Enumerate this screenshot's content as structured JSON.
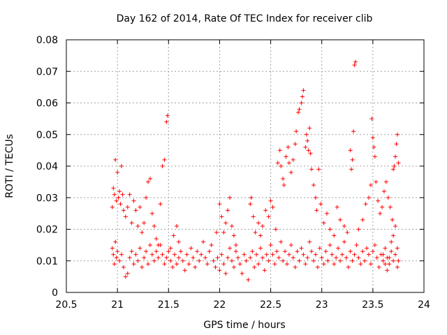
{
  "chart_data": {
    "type": "scatter",
    "title": "Day 162 of 2014, Rate Of TEC Index for receiver clib",
    "xlabel": "GPS time / hours",
    "ylabel": "ROTI / TECUs",
    "xlim": [
      20.5,
      24
    ],
    "ylim": [
      0,
      0.08
    ],
    "x_ticks": [
      20.5,
      21,
      21.5,
      22,
      22.5,
      23,
      23.5,
      24
    ],
    "x_tick_labels": [
      "20.5",
      "21",
      "21.5",
      "22",
      "22.5",
      "23",
      "23.5",
      "24"
    ],
    "y_ticks": [
      0,
      0.01,
      0.02,
      0.03,
      0.04,
      0.05,
      0.06,
      0.07,
      0.08
    ],
    "y_tick_labels": [
      "0",
      "0.01",
      "0.02",
      "0.03",
      "0.04",
      "0.05",
      "0.06",
      "0.07",
      "0.08"
    ],
    "grid": true,
    "marker": "+",
    "marker_color": "#ff0000",
    "series": [
      {
        "name": "ROTI",
        "points": [
          [
            20.95,
            0.027
          ],
          [
            20.96,
            0.033
          ],
          [
            20.97,
            0.031
          ],
          [
            20.98,
            0.042
          ],
          [
            20.99,
            0.029
          ],
          [
            21.0,
            0.038
          ],
          [
            21.01,
            0.03
          ],
          [
            21.02,
            0.032
          ],
          [
            21.03,
            0.028
          ],
          [
            21.04,
            0.04
          ],
          [
            21.05,
            0.031
          ],
          [
            21.06,
            0.026
          ],
          [
            21.08,
            0.024
          ],
          [
            21.1,
            0.027
          ],
          [
            21.12,
            0.031
          ],
          [
            21.14,
            0.022
          ],
          [
            21.16,
            0.029
          ],
          [
            21.18,
            0.026
          ],
          [
            21.2,
            0.021
          ],
          [
            21.22,
            0.027
          ],
          [
            21.24,
            0.019
          ],
          [
            21.26,
            0.022
          ],
          [
            21.28,
            0.03
          ],
          [
            21.3,
            0.035
          ],
          [
            21.32,
            0.036
          ],
          [
            21.34,
            0.025
          ],
          [
            21.36,
            0.021
          ],
          [
            21.38,
            0.017
          ],
          [
            21.4,
            0.015
          ],
          [
            21.42,
            0.028
          ],
          [
            21.44,
            0.04
          ],
          [
            21.46,
            0.042
          ],
          [
            21.48,
            0.054
          ],
          [
            21.49,
            0.056
          ],
          [
            21.52,
            0.014
          ],
          [
            21.55,
            0.018
          ],
          [
            21.58,
            0.021
          ],
          [
            21.6,
            0.016
          ],
          [
            20.95,
            0.014
          ],
          [
            20.96,
            0.012
          ],
          [
            20.97,
            0.009
          ],
          [
            20.98,
            0.016
          ],
          [
            20.99,
            0.011
          ],
          [
            21.0,
            0.013
          ],
          [
            21.02,
            0.01
          ],
          [
            21.04,
            0.012
          ],
          [
            21.06,
            0.008
          ],
          [
            21.08,
            0.005
          ],
          [
            21.1,
            0.006
          ],
          [
            21.12,
            0.011
          ],
          [
            21.14,
            0.013
          ],
          [
            21.16,
            0.009
          ],
          [
            21.18,
            0.012
          ],
          [
            21.2,
            0.01
          ],
          [
            21.22,
            0.014
          ],
          [
            21.24,
            0.008
          ],
          [
            21.26,
            0.011
          ],
          [
            21.28,
            0.013
          ],
          [
            21.3,
            0.009
          ],
          [
            21.32,
            0.015
          ],
          [
            21.34,
            0.012
          ],
          [
            21.36,
            0.01
          ],
          [
            21.38,
            0.013
          ],
          [
            21.4,
            0.011
          ],
          [
            21.42,
            0.015
          ],
          [
            21.44,
            0.012
          ],
          [
            21.46,
            0.009
          ],
          [
            21.48,
            0.011
          ],
          [
            21.5,
            0.013
          ],
          [
            21.52,
            0.01
          ],
          [
            21.54,
            0.008
          ],
          [
            21.56,
            0.012
          ],
          [
            21.58,
            0.009
          ],
          [
            21.6,
            0.011
          ],
          [
            21.62,
            0.013
          ],
          [
            21.64,
            0.01
          ],
          [
            21.66,
            0.007
          ],
          [
            21.68,
            0.012
          ],
          [
            21.7,
            0.009
          ],
          [
            21.72,
            0.014
          ],
          [
            21.74,
            0.011
          ],
          [
            21.76,
            0.008
          ],
          [
            21.78,
            0.013
          ],
          [
            21.8,
            0.01
          ],
          [
            21.82,
            0.012
          ],
          [
            21.84,
            0.016
          ],
          [
            21.86,
            0.011
          ],
          [
            21.88,
            0.009
          ],
          [
            21.9,
            0.013
          ],
          [
            21.92,
            0.015
          ],
          [
            21.94,
            0.01
          ],
          [
            21.96,
            0.008
          ],
          [
            21.98,
            0.011
          ],
          [
            21.97,
            0.019
          ],
          [
            22.0,
            0.028
          ],
          [
            22.02,
            0.024
          ],
          [
            22.04,
            0.019
          ],
          [
            22.06,
            0.022
          ],
          [
            22.08,
            0.026
          ],
          [
            22.1,
            0.03
          ],
          [
            22.12,
            0.021
          ],
          [
            22.14,
            0.018
          ],
          [
            22.16,
            0.015
          ],
          [
            22.0,
            0.007
          ],
          [
            22.02,
            0.012
          ],
          [
            22.04,
            0.009
          ],
          [
            22.06,
            0.006
          ],
          [
            22.08,
            0.011
          ],
          [
            22.1,
            0.014
          ],
          [
            22.12,
            0.01
          ],
          [
            22.14,
            0.008
          ],
          [
            22.16,
            0.013
          ],
          [
            22.18,
            0.011
          ],
          [
            22.2,
            0.009
          ],
          [
            22.22,
            0.006
          ],
          [
            22.24,
            0.012
          ],
          [
            22.26,
            0.01
          ],
          [
            22.28,
            0.004
          ],
          [
            22.3,
            0.011
          ],
          [
            22.32,
            0.013
          ],
          [
            22.34,
            0.008
          ],
          [
            22.36,
            0.012
          ],
          [
            22.38,
            0.009
          ],
          [
            22.4,
            0.014
          ],
          [
            22.42,
            0.011
          ],
          [
            22.44,
            0.007
          ],
          [
            22.46,
            0.012
          ],
          [
            22.48,
            0.01
          ],
          [
            22.5,
            0.015
          ],
          [
            22.52,
            0.012
          ],
          [
            22.54,
            0.009
          ],
          [
            22.56,
            0.013
          ],
          [
            22.58,
            0.011
          ],
          [
            22.6,
            0.016
          ],
          [
            22.62,
            0.01
          ],
          [
            22.64,
            0.013
          ],
          [
            22.66,
            0.009
          ],
          [
            22.68,
            0.012
          ],
          [
            22.7,
            0.015
          ],
          [
            22.72,
            0.011
          ],
          [
            22.74,
            0.008
          ],
          [
            22.76,
            0.013
          ],
          [
            22.78,
            0.01
          ],
          [
            22.8,
            0.014
          ],
          [
            22.82,
            0.012
          ],
          [
            22.84,
            0.009
          ],
          [
            22.86,
            0.011
          ],
          [
            22.88,
            0.016
          ],
          [
            22.9,
            0.013
          ],
          [
            22.92,
            0.01
          ],
          [
            22.94,
            0.012
          ],
          [
            22.96,
            0.008
          ],
          [
            22.98,
            0.014
          ],
          [
            23.0,
            0.011
          ],
          [
            23.02,
            0.009
          ],
          [
            23.04,
            0.013
          ],
          [
            23.06,
            0.01
          ],
          [
            23.08,
            0.015
          ],
          [
            23.1,
            0.012
          ],
          [
            23.12,
            0.009
          ],
          [
            23.14,
            0.011
          ],
          [
            23.16,
            0.014
          ],
          [
            23.18,
            0.01
          ],
          [
            23.2,
            0.012
          ],
          [
            23.22,
            0.016
          ],
          [
            23.24,
            0.011
          ],
          [
            23.26,
            0.008
          ],
          [
            23.28,
            0.013
          ],
          [
            23.3,
            0.01
          ],
          [
            23.32,
            0.012
          ],
          [
            23.34,
            0.015
          ],
          [
            23.36,
            0.011
          ],
          [
            23.38,
            0.009
          ],
          [
            23.4,
            0.013
          ],
          [
            23.42,
            0.01
          ],
          [
            23.44,
            0.014
          ],
          [
            23.46,
            0.012
          ],
          [
            23.48,
            0.009
          ],
          [
            23.5,
            0.013
          ],
          [
            23.52,
            0.015
          ],
          [
            23.54,
            0.011
          ],
          [
            23.56,
            0.008
          ],
          [
            23.58,
            0.012
          ],
          [
            23.6,
            0.01
          ],
          [
            23.62,
            0.014
          ],
          [
            23.64,
            0.011
          ],
          [
            23.66,
            0.009
          ],
          [
            23.68,
            0.013
          ],
          [
            23.7,
            0.01
          ],
          [
            23.72,
            0.012
          ],
          [
            23.74,
            0.008
          ],
          [
            22.3,
            0.028
          ],
          [
            22.31,
            0.03
          ],
          [
            22.33,
            0.024
          ],
          [
            22.35,
            0.019
          ],
          [
            22.38,
            0.022
          ],
          [
            22.4,
            0.018
          ],
          [
            22.42,
            0.021
          ],
          [
            22.45,
            0.026
          ],
          [
            22.48,
            0.024
          ],
          [
            22.5,
            0.029
          ],
          [
            22.52,
            0.027
          ],
          [
            22.55,
            0.02
          ],
          [
            22.57,
            0.041
          ],
          [
            22.59,
            0.045
          ],
          [
            22.6,
            0.04
          ],
          [
            22.62,
            0.036
          ],
          [
            22.63,
            0.034
          ],
          [
            22.65,
            0.043
          ],
          [
            22.67,
            0.046
          ],
          [
            22.68,
            0.041
          ],
          [
            22.7,
            0.038
          ],
          [
            22.72,
            0.042
          ],
          [
            22.74,
            0.047
          ],
          [
            22.75,
            0.051
          ],
          [
            22.77,
            0.057
          ],
          [
            22.78,
            0.058
          ],
          [
            22.8,
            0.06
          ],
          [
            22.81,
            0.062
          ],
          [
            22.82,
            0.064
          ],
          [
            22.84,
            0.046
          ],
          [
            22.85,
            0.05
          ],
          [
            22.86,
            0.048
          ],
          [
            22.87,
            0.045
          ],
          [
            22.88,
            0.052
          ],
          [
            22.89,
            0.044
          ],
          [
            22.9,
            0.039
          ],
          [
            22.92,
            0.034
          ],
          [
            22.94,
            0.03
          ],
          [
            22.95,
            0.026
          ],
          [
            22.97,
            0.039
          ],
          [
            22.99,
            0.028
          ],
          [
            23.02,
            0.022
          ],
          [
            23.05,
            0.025
          ],
          [
            23.08,
            0.02
          ],
          [
            23.12,
            0.018
          ],
          [
            23.15,
            0.027
          ],
          [
            23.18,
            0.023
          ],
          [
            23.22,
            0.021
          ],
          [
            23.25,
            0.019
          ],
          [
            23.28,
            0.045
          ],
          [
            23.29,
            0.039
          ],
          [
            23.3,
            0.042
          ],
          [
            23.31,
            0.051
          ],
          [
            23.32,
            0.072
          ],
          [
            23.33,
            0.073
          ],
          [
            23.36,
            0.02
          ],
          [
            23.4,
            0.023
          ],
          [
            23.43,
            0.028
          ],
          [
            23.46,
            0.03
          ],
          [
            23.48,
            0.034
          ],
          [
            23.49,
            0.055
          ],
          [
            23.5,
            0.049
          ],
          [
            23.51,
            0.046
          ],
          [
            23.52,
            0.043
          ],
          [
            23.53,
            0.035
          ],
          [
            23.55,
            0.029
          ],
          [
            23.57,
            0.025
          ],
          [
            23.59,
            0.027
          ],
          [
            23.61,
            0.032
          ],
          [
            23.63,
            0.035
          ],
          [
            23.65,
            0.03
          ],
          [
            23.67,
            0.027
          ],
          [
            23.69,
            0.023
          ],
          [
            23.7,
            0.039
          ],
          [
            23.71,
            0.04
          ],
          [
            23.72,
            0.043
          ],
          [
            23.73,
            0.047
          ],
          [
            23.74,
            0.05
          ],
          [
            23.75,
            0.041
          ],
          [
            23.6,
            0.012
          ],
          [
            23.62,
            0.009
          ],
          [
            23.64,
            0.007
          ],
          [
            23.66,
            0.011
          ],
          [
            23.68,
            0.016
          ],
          [
            23.7,
            0.018
          ],
          [
            23.72,
            0.021
          ],
          [
            23.74,
            0.014
          ],
          [
            23.75,
            0.01
          ]
        ]
      }
    ]
  }
}
